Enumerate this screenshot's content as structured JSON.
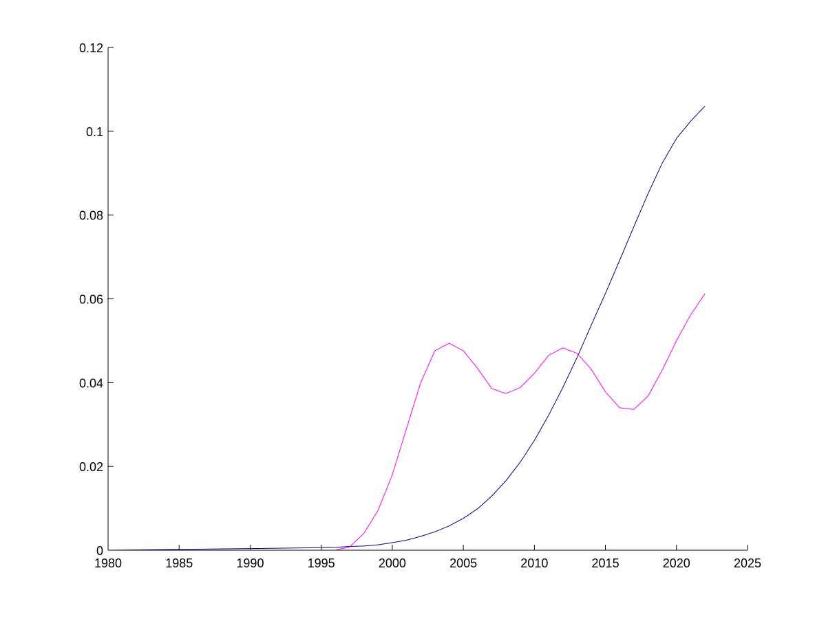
{
  "chart_data": {
    "type": "line",
    "title": "",
    "xlabel": "",
    "ylabel": "",
    "xlim": [
      1980,
      2025
    ],
    "ylim": [
      0,
      0.12
    ],
    "grid": false,
    "legend": "none",
    "xticks": [
      1980,
      1985,
      1990,
      1995,
      2000,
      2005,
      2010,
      2015,
      2020,
      2025
    ],
    "xtick_labels": [
      "1980",
      "1985",
      "1990",
      "1995",
      "2000",
      "2005",
      "2010",
      "2015",
      "2020",
      "2025"
    ],
    "yticks": [
      0,
      0.02,
      0.04,
      0.06,
      0.08,
      0.1,
      0.12
    ],
    "ytick_labels": [
      "0",
      "0.02",
      "0.04",
      "0.06",
      "0.08",
      "0.1",
      "0.12"
    ],
    "series": [
      {
        "color": "#00007f",
        "x": [
          1980,
          1985,
          1990,
          1995,
          1996,
          1997,
          1998,
          1999,
          2000,
          2001,
          2002,
          2003,
          2004,
          2005,
          2006,
          2007,
          2008,
          2009,
          2010,
          2011,
          2012,
          2013,
          2014,
          2015,
          2016,
          2017,
          2018,
          2019,
          2020,
          2021,
          2022
        ],
        "y": [
          0,
          0.0002,
          0.0004,
          0.0006,
          0.0007,
          0.0009,
          0.001,
          0.0013,
          0.0018,
          0.0024,
          0.0033,
          0.0044,
          0.0058,
          0.0076,
          0.0099,
          0.0129,
          0.0166,
          0.021,
          0.0262,
          0.0322,
          0.0388,
          0.046,
          0.0537,
          0.0613,
          0.0692,
          0.0772,
          0.0851,
          0.0924,
          0.0983,
          0.1024,
          0.106
        ]
      },
      {
        "color": "#ff00ff",
        "x": [
          1980,
          1995,
          1996,
          1997,
          1998,
          1999,
          2000,
          2001,
          2002,
          2003,
          2004,
          2005,
          2006,
          2007,
          2008,
          2009,
          2010,
          2011,
          2012,
          2013,
          2014,
          2015,
          2016,
          2017,
          2018,
          2019,
          2020,
          2021,
          2022
        ],
        "y": [
          0,
          0,
          0,
          0.0008,
          0.004,
          0.0095,
          0.018,
          0.029,
          0.04,
          0.0476,
          0.0494,
          0.0476,
          0.0434,
          0.0386,
          0.0374,
          0.0388,
          0.0422,
          0.0465,
          0.0483,
          0.047,
          0.0432,
          0.0378,
          0.034,
          0.0336,
          0.0368,
          0.043,
          0.05,
          0.0562,
          0.0612
        ]
      }
    ]
  }
}
